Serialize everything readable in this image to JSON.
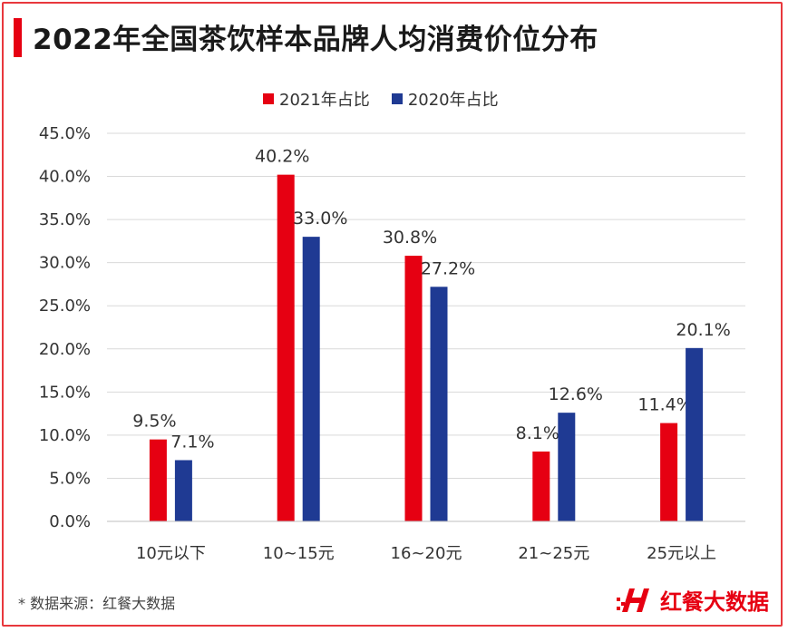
{
  "title": "2022年全国茶饮样本品牌人均消费价位分布",
  "source": "* 数据来源：红餐大数据",
  "brand": {
    "name": "红餐大数据",
    "logo_icon": "hongcan-h-logo-icon"
  },
  "colors": {
    "accent": "#e60012",
    "series_2021": "#e60012",
    "series_2020": "#1f3a93"
  },
  "chart_data": {
    "type": "bar",
    "title": "2022年全国茶饮样本品牌人均消费价位分布",
    "categories": [
      "10元以下",
      "10~15元",
      "16~20元",
      "21~25元",
      "25元以上"
    ],
    "series": [
      {
        "name": "2021年占比",
        "values": [
          9.5,
          40.2,
          30.8,
          8.1,
          11.4
        ],
        "labels": [
          "9.5%",
          "40.2%",
          "30.8%",
          "8.1%",
          "11.4%"
        ]
      },
      {
        "name": "2020年占比",
        "values": [
          7.1,
          33.0,
          27.2,
          12.6,
          20.1
        ],
        "labels": [
          "7.1%",
          "33.0%",
          "27.2%",
          "12.6%",
          "20.1%"
        ]
      }
    ],
    "y_ticks": [
      "0.0%",
      "5.0%",
      "10.0%",
      "15.0%",
      "20.0%",
      "25.0%",
      "30.0%",
      "35.0%",
      "40.0%",
      "45.0%"
    ],
    "ylim": [
      0,
      45
    ],
    "grid": true,
    "legend_position": "top-center",
    "xlabel": "",
    "ylabel": ""
  }
}
